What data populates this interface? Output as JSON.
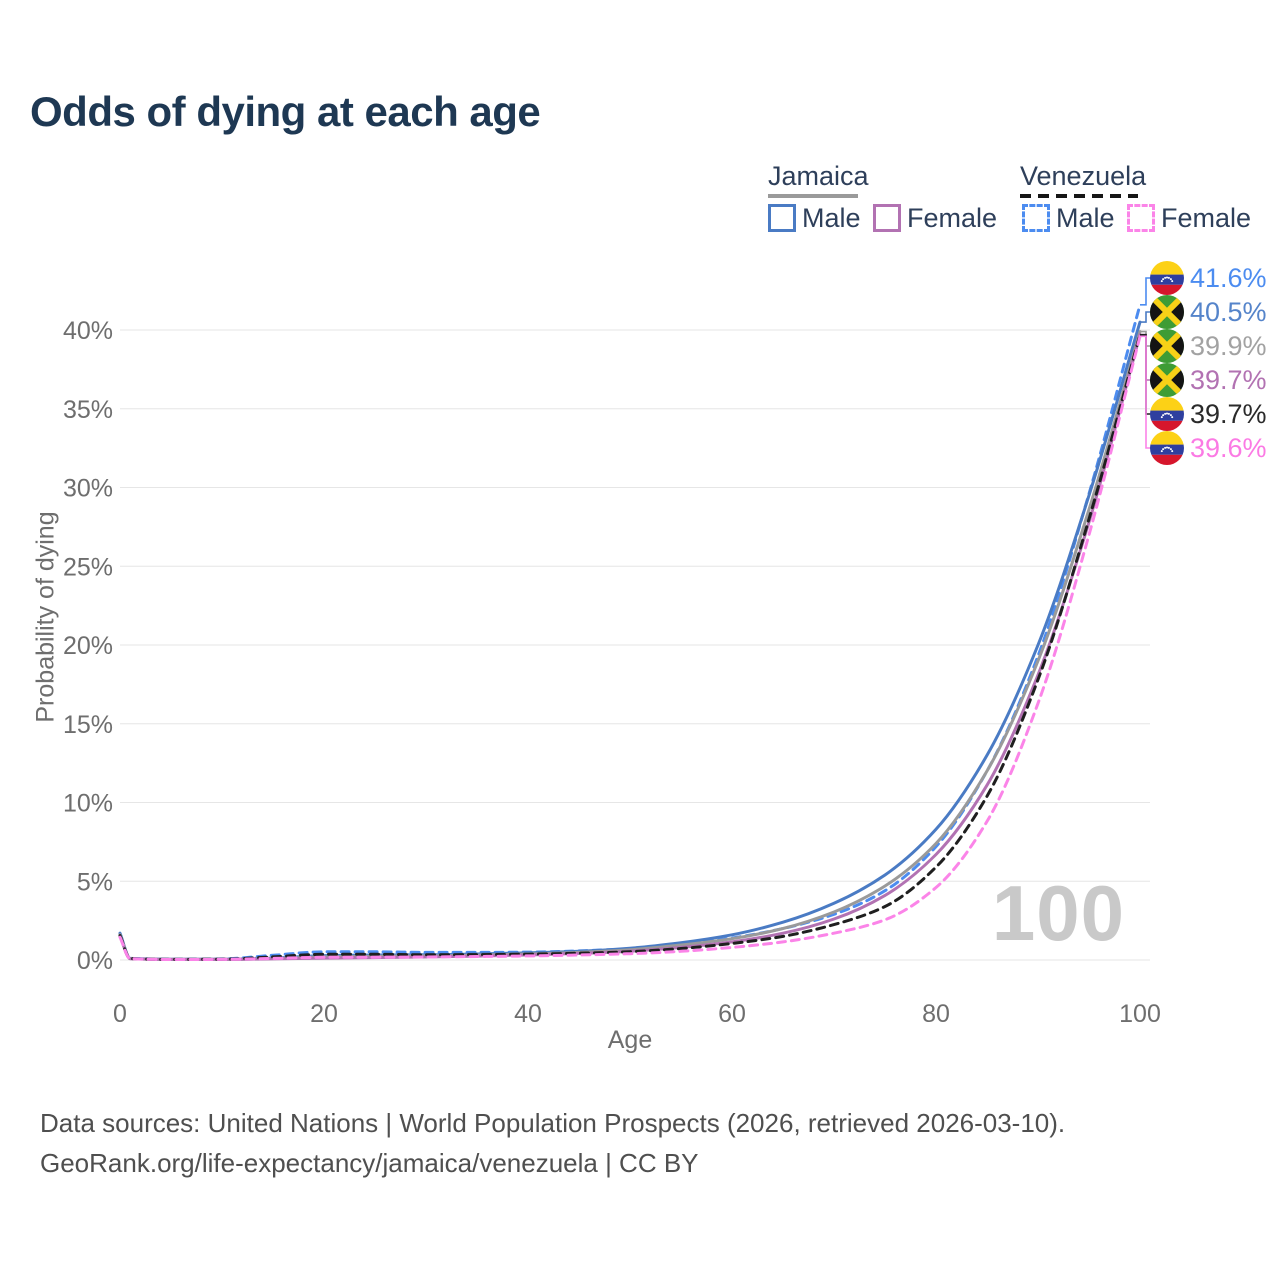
{
  "title": "Odds of dying at each age",
  "legend": {
    "jamaica": {
      "name": "Jamaica",
      "male_label": "Male",
      "female_label": "Female"
    },
    "venezuela": {
      "name": "Venezuela",
      "male_label": "Male",
      "female_label": "Female"
    }
  },
  "colors": {
    "title_navy": "#1e3853",
    "legend_text": "#2e3f5a",
    "axis_gray": "#6e6e6e",
    "grid": "#e6e6e6",
    "age_marker_gray": "#c9c9c9",
    "jamaica_male": "#4a7bc4",
    "jamaica_female": "#b272b2",
    "jamaica_both": "#9a9a9a",
    "venezuela_male": "#4c8cf0",
    "venezuela_female": "#fb84e8",
    "venezuela_both": "#1f1f1f"
  },
  "chart_data": {
    "type": "line",
    "title": "Odds of dying at each age",
    "xlabel": "Age",
    "ylabel": "Probability of dying",
    "xlim": [
      0,
      100
    ],
    "ylim_pct": [
      0,
      44
    ],
    "x_ticks": [
      0,
      20,
      40,
      60,
      80,
      100
    ],
    "y_ticks_pct": [
      0,
      5,
      10,
      15,
      20,
      25,
      30,
      35,
      40
    ],
    "y_tick_suffix": "%",
    "grid": "horizontal",
    "age_marker": "100",
    "ages": [
      0,
      1,
      5,
      10,
      15,
      20,
      25,
      30,
      35,
      40,
      45,
      50,
      55,
      60,
      65,
      70,
      75,
      80,
      85,
      90,
      95,
      100
    ],
    "series": [
      {
        "id": "venezuela-male",
        "country": "Venezuela",
        "sex": "Male",
        "flag": "venezuela",
        "color": "#4c8cf0",
        "label_color": "#4c8cf0",
        "dashed": true,
        "end_label": "41.6%",
        "values_pct": [
          1.65,
          0.1,
          0.05,
          0.07,
          0.3,
          0.52,
          0.52,
          0.48,
          0.48,
          0.5,
          0.58,
          0.72,
          1.0,
          1.4,
          2.0,
          2.9,
          4.4,
          7.2,
          12.0,
          19.3,
          29.6,
          41.6
        ]
      },
      {
        "id": "jamaica-male",
        "country": "Jamaica",
        "sex": "Male",
        "flag": "jamaica",
        "color": "#4a7bc4",
        "label_color": "#5584ca",
        "dashed": false,
        "end_label": "40.5%",
        "values_pct": [
          1.7,
          0.1,
          0.05,
          0.05,
          0.12,
          0.28,
          0.32,
          0.33,
          0.38,
          0.45,
          0.55,
          0.75,
          1.1,
          1.6,
          2.4,
          3.6,
          5.4,
          8.3,
          13.0,
          20.0,
          29.5,
          40.5
        ]
      },
      {
        "id": "jamaica-both",
        "country": "Jamaica",
        "sex": "Both",
        "flag": "jamaica",
        "color": "#9a9a9a",
        "label_color": "#a2a2a2",
        "dashed": false,
        "end_label": "39.9%",
        "values_pct": [
          1.6,
          0.09,
          0.04,
          0.04,
          0.09,
          0.2,
          0.24,
          0.26,
          0.31,
          0.38,
          0.48,
          0.65,
          0.95,
          1.35,
          2.0,
          3.05,
          4.7,
          7.4,
          12.0,
          19.0,
          28.6,
          39.9
        ]
      },
      {
        "id": "jamaica-female",
        "country": "Jamaica",
        "sex": "Female",
        "flag": "jamaica",
        "color": "#b272b2",
        "label_color": "#b272b2",
        "dashed": false,
        "end_label": "39.7%",
        "values_pct": [
          1.5,
          0.08,
          0.04,
          0.04,
          0.07,
          0.12,
          0.15,
          0.19,
          0.25,
          0.32,
          0.42,
          0.56,
          0.8,
          1.15,
          1.7,
          2.6,
          4.1,
          6.7,
          11.1,
          18.1,
          27.8,
          39.7
        ]
      },
      {
        "id": "venezuela-both",
        "country": "Venezuela",
        "sex": "Both",
        "flag": "venezuela",
        "color": "#1f1f1f",
        "label_color": "#2a2a2a",
        "dashed": true,
        "end_label": "39.7%",
        "values_pct": [
          1.55,
          0.09,
          0.04,
          0.05,
          0.2,
          0.36,
          0.36,
          0.33,
          0.34,
          0.37,
          0.43,
          0.53,
          0.73,
          1.05,
          1.5,
          2.25,
          3.4,
          5.9,
          10.4,
          17.8,
          28.0,
          39.7
        ]
      },
      {
        "id": "venezuela-female",
        "country": "Venezuela",
        "sex": "Female",
        "flag": "venezuela",
        "color": "#fb84e8",
        "label_color": "#fb7ae4",
        "dashed": true,
        "end_label": "39.6%",
        "values_pct": [
          1.45,
          0.08,
          0.03,
          0.04,
          0.1,
          0.17,
          0.18,
          0.19,
          0.22,
          0.26,
          0.32,
          0.4,
          0.55,
          0.8,
          1.15,
          1.7,
          2.55,
          4.6,
          8.8,
          16.3,
          27.0,
          39.6
        ]
      }
    ]
  },
  "footer": {
    "line1": "Data sources: United Nations | World Population Prospects (2026, retrieved 2026-03-10).",
    "line2": "GeoRank.org/life-expectancy/jamaica/venezuela | CC BY"
  }
}
